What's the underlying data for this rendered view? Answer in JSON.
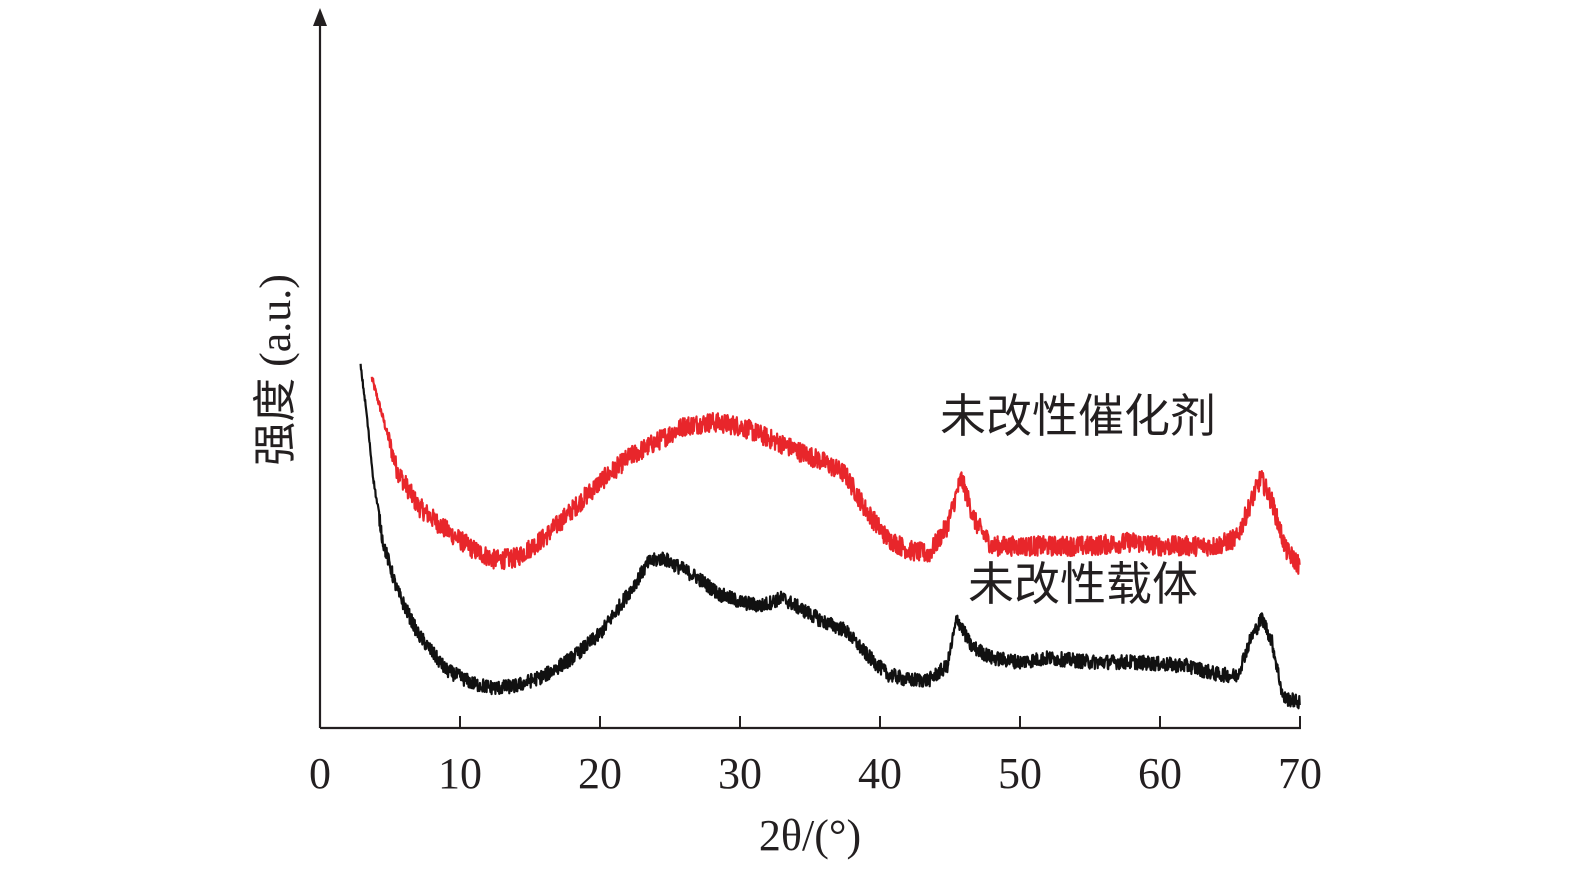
{
  "chart_data": {
    "type": "line",
    "title": "",
    "xlabel": "2θ/(°)",
    "ylabel": "强度 (a.u.)",
    "xlim": [
      0,
      70
    ],
    "x_ticks": [
      0,
      10,
      20,
      30,
      40,
      50,
      60,
      70
    ],
    "y_ticks_shown": false,
    "grid": false,
    "legend": "inline labels at right of curves",
    "colors": {
      "catalyst": "#e8262b",
      "support": "#111111",
      "axis": "#231f20"
    },
    "series": [
      {
        "name": "未改性催化剂",
        "color": "#e8262b",
        "noise": 0.25,
        "x": [
          3.7,
          4.5,
          5.5,
          7,
          9,
          11,
          12.5,
          14,
          16,
          18,
          20,
          22,
          24,
          26,
          28,
          30,
          32,
          34,
          36,
          37.5,
          39,
          40.5,
          42,
          43.5,
          44.8,
          45.8,
          46.8,
          48,
          50,
          52,
          55,
          58,
          60,
          62,
          64,
          65.5,
          66.5,
          67.2,
          68,
          69,
          70
        ],
        "y": [
          9.3,
          8.3,
          7.0,
          6.1,
          5.5,
          5.0,
          4.75,
          4.8,
          5.3,
          6.0,
          6.7,
          7.3,
          7.7,
          8.1,
          8.2,
          8.1,
          7.8,
          7.5,
          7.2,
          6.9,
          6.0,
          5.3,
          5.0,
          4.9,
          5.6,
          6.8,
          5.7,
          5.1,
          5.1,
          5.1,
          5.1,
          5.2,
          5.1,
          5.1,
          5.1,
          5.3,
          6.2,
          6.8,
          6.2,
          5.0,
          4.6
        ]
      },
      {
        "name": "未改性载体",
        "color": "#111111",
        "noise": 0.18,
        "x": [
          2.9,
          3.3,
          3.8,
          4.5,
          5.5,
          7,
          9,
          11,
          12.5,
          14,
          16,
          18,
          20,
          22,
          23.5,
          24.5,
          25.5,
          27,
          28.5,
          30,
          31.5,
          33,
          34.5,
          36,
          37.5,
          39,
          40.5,
          42,
          43.5,
          44.8,
          45.5,
          46.5,
          48,
          50,
          52,
          55,
          58,
          60,
          62,
          64,
          65.5,
          66.5,
          67.3,
          68,
          68.8,
          70
        ],
        "y": [
          9.6,
          8.5,
          6.8,
          5.2,
          4.0,
          2.9,
          2.0,
          1.65,
          1.55,
          1.6,
          1.85,
          2.3,
          2.9,
          3.9,
          4.7,
          4.8,
          4.6,
          4.3,
          3.9,
          3.7,
          3.6,
          3.8,
          3.5,
          3.2,
          3.0,
          2.4,
          1.9,
          1.75,
          1.75,
          2.1,
          3.3,
          2.6,
          2.3,
          2.2,
          2.3,
          2.2,
          2.2,
          2.15,
          2.1,
          1.9,
          1.85,
          2.8,
          3.3,
          2.7,
          1.3,
          1.2
        ]
      }
    ]
  }
}
